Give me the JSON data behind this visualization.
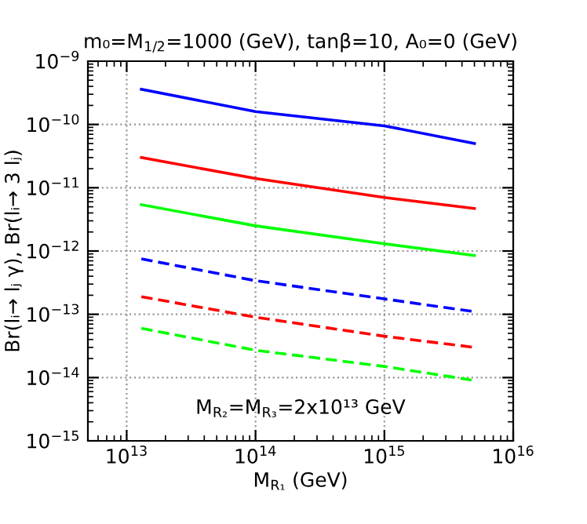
{
  "chart_data": {
    "type": "line",
    "title": "m₀=M$_{1/2}$=1000 (GeV), tanβ=10, A₀=0 (GeV)",
    "xlabel": "M$_{R₁}$ (GeV)",
    "ylabel": "Br(lᵢ→ lⱼ γ), Br(lᵢ→ 3 lⱼ)",
    "annotations": [
      "M$_{R₂}$=M$_{R₃}$=2x10¹³ GeV"
    ],
    "x": [
      13000000000000.0,
      100000000000000.0,
      1000000000000000.0,
      5000000000000000.0
    ],
    "series": [
      {
        "color": "#0000ff",
        "line_style": "solid",
        "values": [
          3.6e-10,
          1.6e-10,
          9.5e-11,
          5e-11
        ]
      },
      {
        "color": "#ff0000",
        "line_style": "solid",
        "values": [
          3e-11,
          1.4e-11,
          7e-12,
          4.7e-12
        ]
      },
      {
        "color": "#00ff00",
        "line_style": "solid",
        "values": [
          5.4e-12,
          2.5e-12,
          1.3e-12,
          8.5e-13
        ]
      },
      {
        "color": "#0000ff",
        "line_style": "dashed",
        "values": [
          7.5e-13,
          3.4e-13,
          1.75e-13,
          1.1e-13
        ]
      },
      {
        "color": "#ff0000",
        "line_style": "dashed",
        "values": [
          1.9e-13,
          9e-14,
          4.5e-14,
          3e-14
        ]
      },
      {
        "color": "#00ff00",
        "line_style": "dashed",
        "values": [
          6e-14,
          2.7e-14,
          1.5e-14,
          9e-15
        ]
      }
    ],
    "log": "xy",
    "xlim": [
      5000000000000.0,
      1e+16
    ],
    "ylim": [
      1e-15,
      1e-09
    ],
    "xticks": [
      {
        "value": 10000000000000.0,
        "label": "10$^{13}$"
      },
      {
        "value": 100000000000000.0,
        "label": "10$^{14}$"
      },
      {
        "value": 1000000000000000.0,
        "label": "10$^{15}$"
      },
      {
        "value": 1e+16,
        "label": "10$^{16}$"
      }
    ],
    "yticks": [
      {
        "value": 1e-15,
        "label": "10$^{−15}$"
      },
      {
        "value": 1e-14,
        "label": "10$^{−14}$"
      },
      {
        "value": 1e-13,
        "label": "10$^{−13}$"
      },
      {
        "value": 1e-12,
        "label": "10$^{−12}$"
      },
      {
        "value": 1e-11,
        "label": "10$^{−11}$"
      },
      {
        "value": 1e-10,
        "label": "10$^{−10}$"
      },
      {
        "value": 1e-09,
        "label": "10$^{−9}$"
      }
    ],
    "grid": true,
    "legend": false
  }
}
